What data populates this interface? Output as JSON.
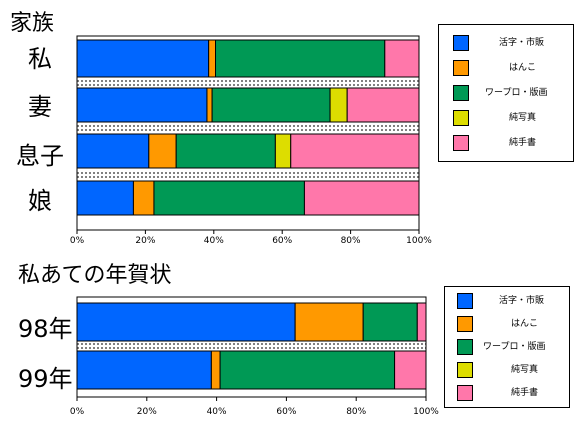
{
  "chart_data": [
    {
      "type": "bar",
      "orientation": "horizontal",
      "stacked": "percent",
      "title": "家族",
      "categories": [
        "私",
        "妻",
        "息子",
        "娘"
      ],
      "series": [
        {
          "name": "活字・市販",
          "color": "#0066ff",
          "values": [
            38.5,
            38.0,
            21.0,
            16.5
          ]
        },
        {
          "name": "はんこ",
          "color": "#ff9900",
          "values": [
            2.0,
            1.5,
            8.0,
            6.0
          ]
        },
        {
          "name": "ワープロ・版画",
          "color": "#009955",
          "values": [
            49.5,
            34.5,
            29.0,
            44.0
          ]
        },
        {
          "name": "純写真",
          "color": "#dddd00",
          "values": [
            0.0,
            5.0,
            4.5,
            0.0
          ]
        },
        {
          "name": "純手書",
          "color": "#ff77aa",
          "values": [
            10.0,
            21.0,
            37.5,
            33.5
          ]
        }
      ],
      "xlim": [
        0,
        100
      ],
      "xticks": [
        "0%",
        "20%",
        "40%",
        "60%",
        "80%",
        "100%"
      ],
      "legend": "right"
    },
    {
      "type": "bar",
      "orientation": "horizontal",
      "stacked": "percent",
      "title": "私あての年賀状",
      "categories": [
        "98年",
        "99年"
      ],
      "series": [
        {
          "name": "活字・市販",
          "color": "#0066ff",
          "values": [
            62.5,
            38.5
          ]
        },
        {
          "name": "はんこ",
          "color": "#ff9900",
          "values": [
            19.5,
            2.5
          ]
        },
        {
          "name": "ワープロ・版画",
          "color": "#009955",
          "values": [
            15.5,
            50.0
          ]
        },
        {
          "name": "純写真",
          "color": "#dddd00",
          "values": [
            0.0,
            0.0
          ]
        },
        {
          "name": "純手書",
          "color": "#ff77aa",
          "values": [
            2.5,
            9.0
          ]
        }
      ],
      "xlim": [
        0,
        100
      ],
      "xticks": [
        "0%",
        "20%",
        "40%",
        "60%",
        "80%",
        "100%"
      ],
      "legend": "right"
    }
  ]
}
